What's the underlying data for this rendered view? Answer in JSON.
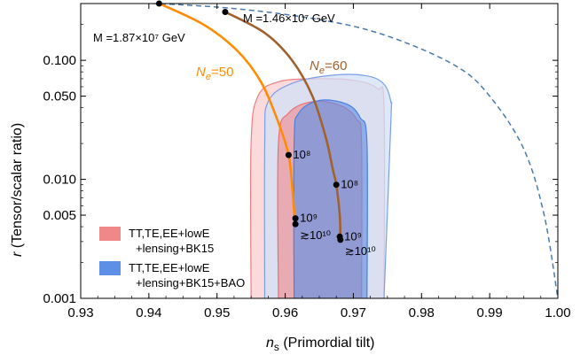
{
  "chart_data": {
    "type": "line",
    "xlabel_symbol": "n",
    "xlabel_sub": "s",
    "xlabel_rest": " (Primordial tilt)",
    "ylabel_symbol": "r",
    "ylabel_rest": " (Tensor/scalar ratio)",
    "xlim": [
      0.93,
      1.0
    ],
    "ylim": [
      0.001,
      0.3
    ],
    "yscale": "log",
    "xticks": [
      "0.93",
      "0.94",
      "0.95",
      "0.96",
      "0.97",
      "0.98",
      "0.99",
      "1.00"
    ],
    "xtick_values": [
      0.93,
      0.94,
      0.95,
      0.96,
      0.97,
      0.98,
      0.99,
      1.0
    ],
    "yticks": [
      "0.001",
      "0.005",
      "0.010",
      "0.050",
      "0.100"
    ],
    "ytick_values": [
      0.001,
      0.005,
      0.01,
      0.05,
      0.1
    ],
    "legend": [
      {
        "line1": "TT,TE,EE+lowE",
        "line2": "+lensing+BK15",
        "color": "#f0888a"
      },
      {
        "line1": "TT,TE,EE+lowE",
        "line2": "+lensing+BK15+BAO",
        "color": "#5d8fe6"
      }
    ],
    "series": [
      {
        "name_symbol": "N",
        "name_sub": "e",
        "name_rest": "=50",
        "color": "#ff8c00",
        "x": [
          0.9415,
          0.948,
          0.953,
          0.9565,
          0.959,
          0.9605,
          0.961,
          0.9613,
          0.9615
        ],
        "y": [
          0.3,
          0.2,
          0.12,
          0.065,
          0.03,
          0.016,
          0.009,
          0.0055,
          0.0042
        ]
      },
      {
        "name_symbol": "N",
        "name_sub": "e",
        "name_rest": "=60",
        "color": "#a0622d",
        "x": [
          0.9512,
          0.957,
          0.961,
          0.964,
          0.966,
          0.967,
          0.9675,
          0.968,
          0.9681
        ],
        "y": [
          0.255,
          0.17,
          0.1,
          0.05,
          0.022,
          0.012,
          0.009,
          0.005,
          0.0031
        ]
      }
    ],
    "upper_bound": {
      "color": "#4a79b0",
      "x": [
        0.93,
        0.95,
        0.965,
        0.975,
        0.985,
        0.99,
        0.995,
        0.998,
        1.0
      ],
      "y": [
        0.318,
        0.28,
        0.22,
        0.16,
        0.09,
        0.05,
        0.018,
        0.005,
        0.001
      ]
    },
    "contours": {
      "pink_outer": [
        [
          0.955,
          0.001
        ],
        [
          0.955,
          0.02
        ],
        [
          0.956,
          0.05
        ],
        [
          0.959,
          0.066
        ],
        [
          0.964,
          0.07
        ],
        [
          0.97,
          0.068
        ],
        [
          0.9735,
          0.058
        ],
        [
          0.9745,
          0.04
        ],
        [
          0.9745,
          0.001
        ]
      ],
      "pink_inner": [
        [
          0.959,
          0.001
        ],
        [
          0.959,
          0.02
        ],
        [
          0.9605,
          0.036
        ],
        [
          0.964,
          0.045
        ],
        [
          0.968,
          0.042
        ],
        [
          0.9705,
          0.032
        ],
        [
          0.9712,
          0.02
        ],
        [
          0.9712,
          0.001
        ]
      ],
      "blue_outer": [
        [
          0.957,
          0.001
        ],
        [
          0.957,
          0.02
        ],
        [
          0.9575,
          0.045
        ],
        [
          0.961,
          0.064
        ],
        [
          0.967,
          0.075
        ],
        [
          0.972,
          0.074
        ],
        [
          0.9745,
          0.063
        ],
        [
          0.9755,
          0.045
        ],
        [
          0.9755,
          0.03
        ],
        [
          0.9745,
          0.001
        ]
      ],
      "blue_inner": [
        [
          0.9613,
          0.001
        ],
        [
          0.9613,
          0.02
        ],
        [
          0.962,
          0.036
        ],
        [
          0.965,
          0.046
        ],
        [
          0.969,
          0.043
        ],
        [
          0.971,
          0.033
        ],
        [
          0.972,
          0.02
        ],
        [
          0.972,
          0.001
        ]
      ]
    },
    "markers": [
      {
        "x": 0.9415,
        "y": 0.3,
        "label": ""
      },
      {
        "x": 0.9512,
        "y": 0.255,
        "label": ""
      },
      {
        "x": 0.9605,
        "y": 0.016,
        "label": "10⁸"
      },
      {
        "x": 0.9675,
        "y": 0.009,
        "label": "10⁸"
      },
      {
        "x": 0.9615,
        "y": 0.0047,
        "label": "10⁹"
      },
      {
        "x": 0.9615,
        "y": 0.0042,
        "label": "≳10¹⁰"
      },
      {
        "x": 0.968,
        "y": 0.0033,
        "label": "10⁹"
      },
      {
        "x": 0.9681,
        "y": 0.0031,
        "label": "≳10¹⁰"
      }
    ],
    "annotations": {
      "m60": "M =1.46×10⁷ GeV",
      "m50": "M =1.87×10⁷ GeV"
    }
  }
}
